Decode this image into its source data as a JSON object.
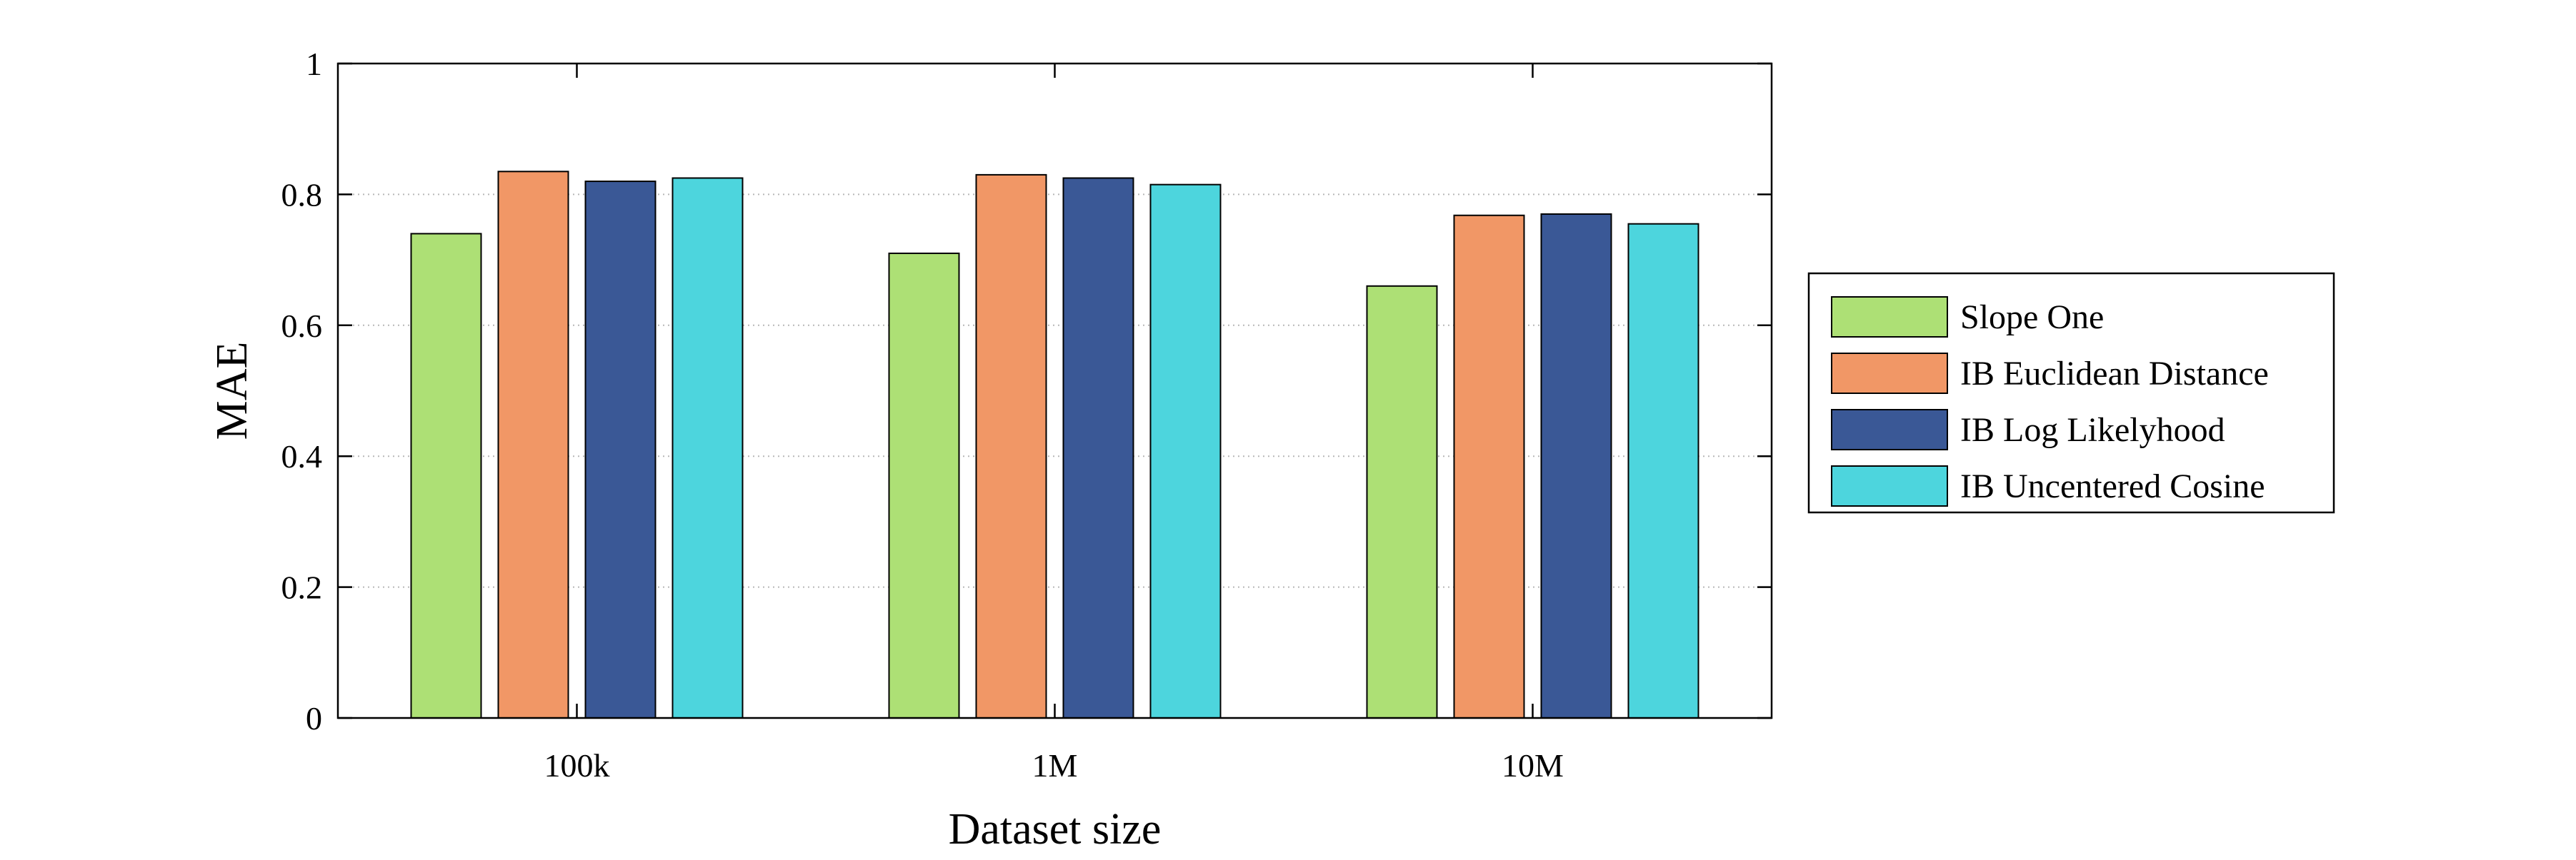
{
  "chart_data": {
    "type": "bar",
    "title": "",
    "xlabel": "Dataset size",
    "ylabel": "MAE",
    "categories": [
      "100k",
      "1M",
      "10M"
    ],
    "series": [
      {
        "name": "Slope One",
        "color": "#ADE075",
        "values": [
          0.74,
          0.71,
          0.66
        ]
      },
      {
        "name": "IB Euclidean Distance",
        "color": "#F19766",
        "values": [
          0.835,
          0.83,
          0.768
        ]
      },
      {
        "name": "IB Log Likelyhood",
        "color": "#3A5896",
        "values": [
          0.82,
          0.825,
          0.77
        ]
      },
      {
        "name": "IB Uncentered Cosine",
        "color": "#4DD5DD",
        "values": [
          0.825,
          0.815,
          0.755
        ]
      }
    ],
    "ylim": [
      0,
      1
    ],
    "yticks": [
      "0",
      "0.2",
      "0.4",
      "0.6",
      "0.8",
      "1"
    ],
    "grid": true,
    "legend_position": "right"
  }
}
